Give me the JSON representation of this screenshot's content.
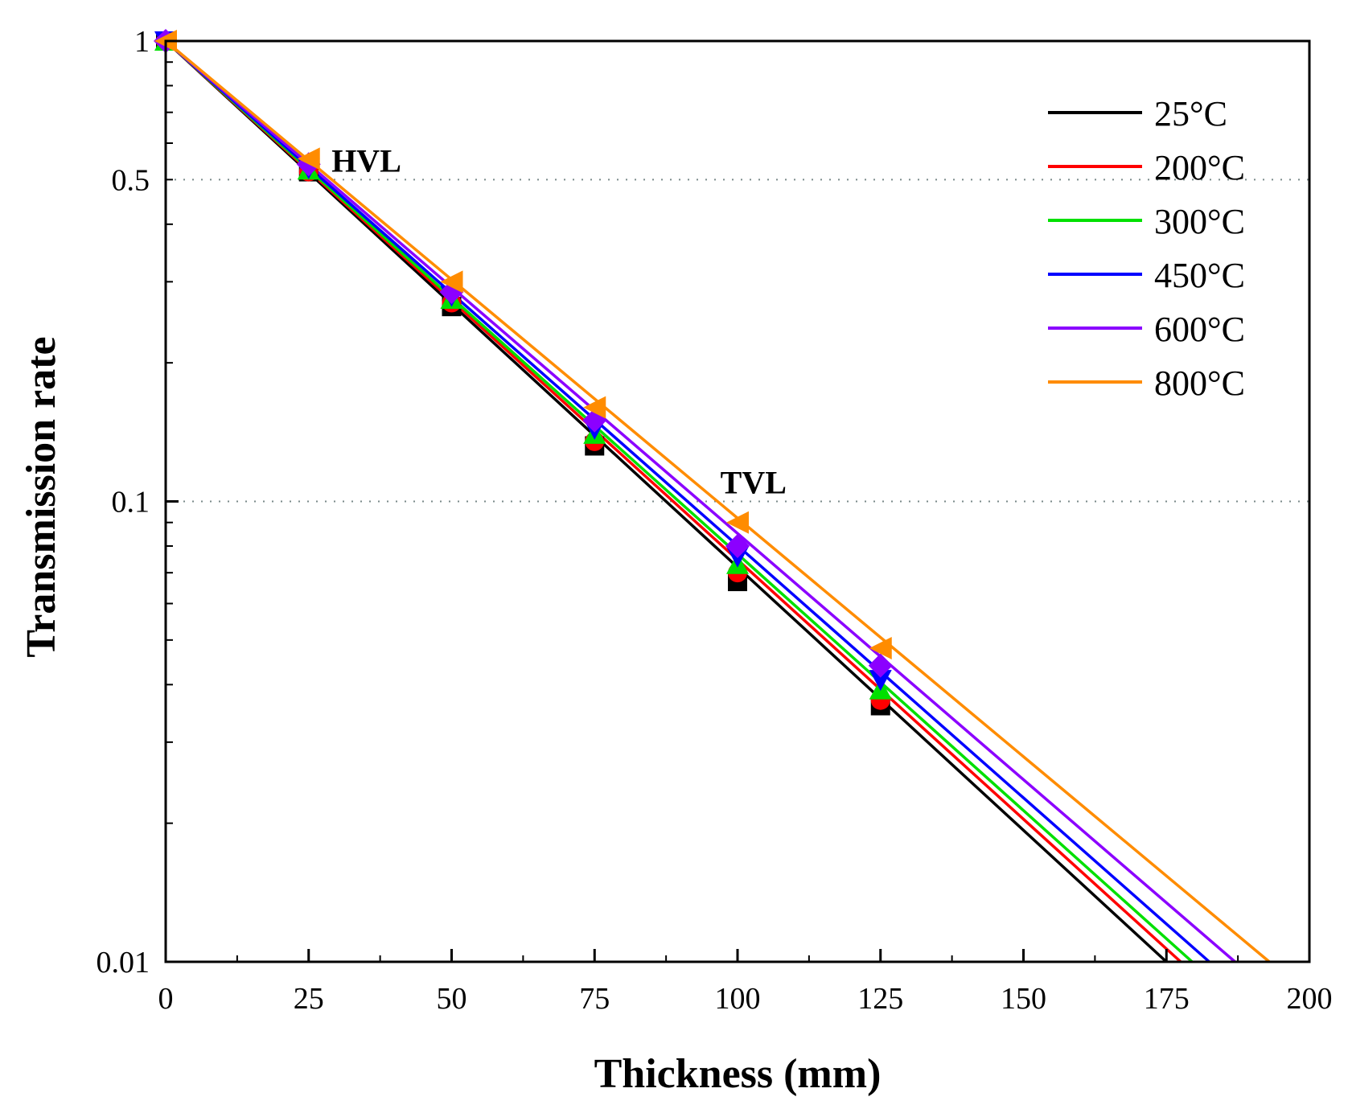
{
  "chart_data": {
    "type": "scatter",
    "title": "",
    "xlabel": "Thickness (mm)",
    "ylabel": "Transmission rate",
    "xlim": [
      0,
      200
    ],
    "ylim": [
      0.01,
      1
    ],
    "yscale": "log",
    "xticks": [
      0,
      25,
      50,
      75,
      100,
      125,
      150,
      175,
      200
    ],
    "xtick_labels": [
      "0",
      "25",
      "50",
      "75",
      "100",
      "125",
      "150",
      "175",
      "200"
    ],
    "yticks": [
      0.01,
      0.1,
      0.5,
      1
    ],
    "ytick_labels": [
      "0.01",
      "0.1",
      "0.5",
      "1"
    ],
    "reference_lines": [
      {
        "y": 0.5,
        "label": "HVL",
        "label_x": 29
      },
      {
        "y": 0.1,
        "label": "TVL",
        "label_x": 97
      }
    ],
    "legend_position": "top-right",
    "x": [
      0,
      25,
      50,
      75,
      100,
      125
    ],
    "series": [
      {
        "name": "25°C",
        "color": "#000000",
        "marker": "square",
        "values": [
          1.0,
          0.52,
          0.265,
          0.132,
          0.067,
          0.036
        ],
        "fit": {
          "x": [
            0,
            175
          ],
          "y": [
            1.0,
            0.01
          ]
        }
      },
      {
        "name": "200°C",
        "color": "#ff0000",
        "marker": "circle",
        "values": [
          1.0,
          0.52,
          0.27,
          0.135,
          0.07,
          0.037
        ],
        "fit": {
          "x": [
            0,
            177.5
          ],
          "y": [
            1.0,
            0.01
          ]
        }
      },
      {
        "name": "300°C",
        "color": "#00e000",
        "marker": "triangle-up",
        "values": [
          1.0,
          0.525,
          0.275,
          0.14,
          0.073,
          0.039
        ],
        "fit": {
          "x": [
            0,
            179.5
          ],
          "y": [
            1.0,
            0.01
          ]
        }
      },
      {
        "name": "450°C",
        "color": "#0000ff",
        "marker": "triangle-down",
        "values": [
          1.0,
          0.53,
          0.28,
          0.144,
          0.076,
          0.041
        ],
        "fit": {
          "x": [
            0,
            182.5
          ],
          "y": [
            1.0,
            0.01
          ]
        }
      },
      {
        "name": "600°C",
        "color": "#8b00ff",
        "marker": "diamond",
        "values": [
          1.0,
          0.54,
          0.285,
          0.15,
          0.08,
          0.044
        ],
        "fit": {
          "x": [
            0,
            187
          ],
          "y": [
            1.0,
            0.01
          ]
        }
      },
      {
        "name": "800°C",
        "color": "#ff8c00",
        "marker": "triangle-left",
        "values": [
          1.0,
          0.555,
          0.3,
          0.16,
          0.09,
          0.048
        ],
        "fit": {
          "x": [
            0,
            193
          ],
          "y": [
            1.0,
            0.01
          ]
        }
      }
    ]
  }
}
